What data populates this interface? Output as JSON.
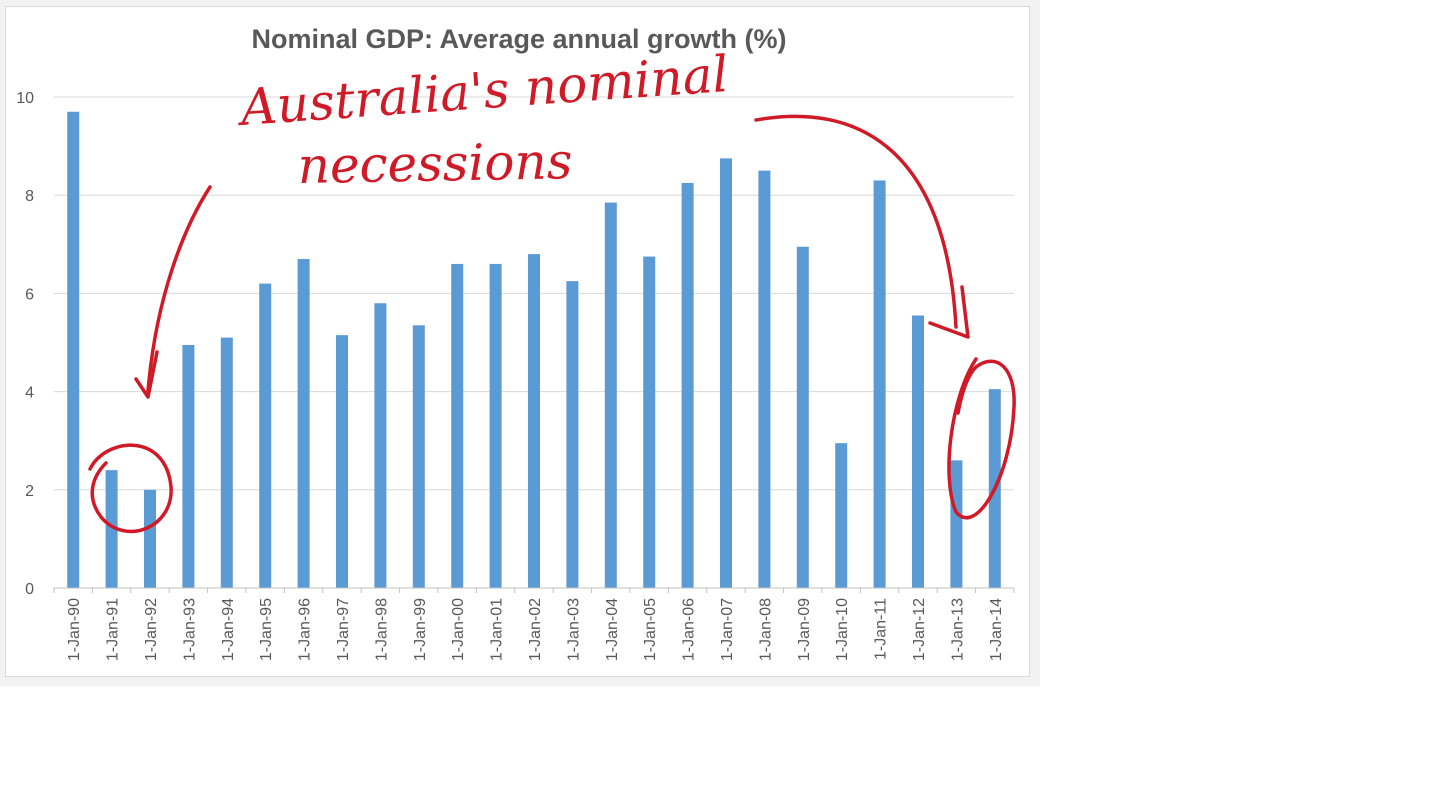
{
  "chart_data": {
    "type": "bar",
    "title": "Nominal GDP: Average annual growth (%)",
    "xlabel": "",
    "ylabel": "",
    "ylim": [
      0,
      10
    ],
    "yticks": [
      0,
      2,
      4,
      6,
      8,
      10
    ],
    "grid": true,
    "legend": "none",
    "bar_color": "#5b9bd5",
    "categories": [
      "1-Jan-90",
      "1-Jan-91",
      "1-Jan-92",
      "1-Jan-93",
      "1-Jan-94",
      "1-Jan-95",
      "1-Jan-96",
      "1-Jan-97",
      "1-Jan-98",
      "1-Jan-99",
      "1-Jan-00",
      "1-Jan-01",
      "1-Jan-02",
      "1-Jan-03",
      "1-Jan-04",
      "1-Jan-05",
      "1-Jan-06",
      "1-Jan-07",
      "1-Jan-08",
      "1-Jan-09",
      "1-Jan-10",
      "1-Jan-11",
      "1-Jan-12",
      "1-Jan-13",
      "1-Jan-14"
    ],
    "values": [
      9.7,
      2.4,
      2.0,
      4.95,
      5.1,
      6.2,
      6.7,
      5.15,
      5.8,
      5.35,
      6.6,
      6.6,
      6.8,
      6.25,
      7.85,
      6.75,
      8.25,
      8.75,
      8.5,
      6.95,
      2.95,
      8.3,
      5.55,
      2.6,
      4.05
    ],
    "annotations": {
      "text_line1": "Australia's nominal",
      "text_line2": "necessions",
      "color": "#d11a27",
      "circled_categories": [
        "1-Jan-91",
        "1-Jan-92",
        "1-Jan-13",
        "1-Jan-14"
      ]
    }
  }
}
